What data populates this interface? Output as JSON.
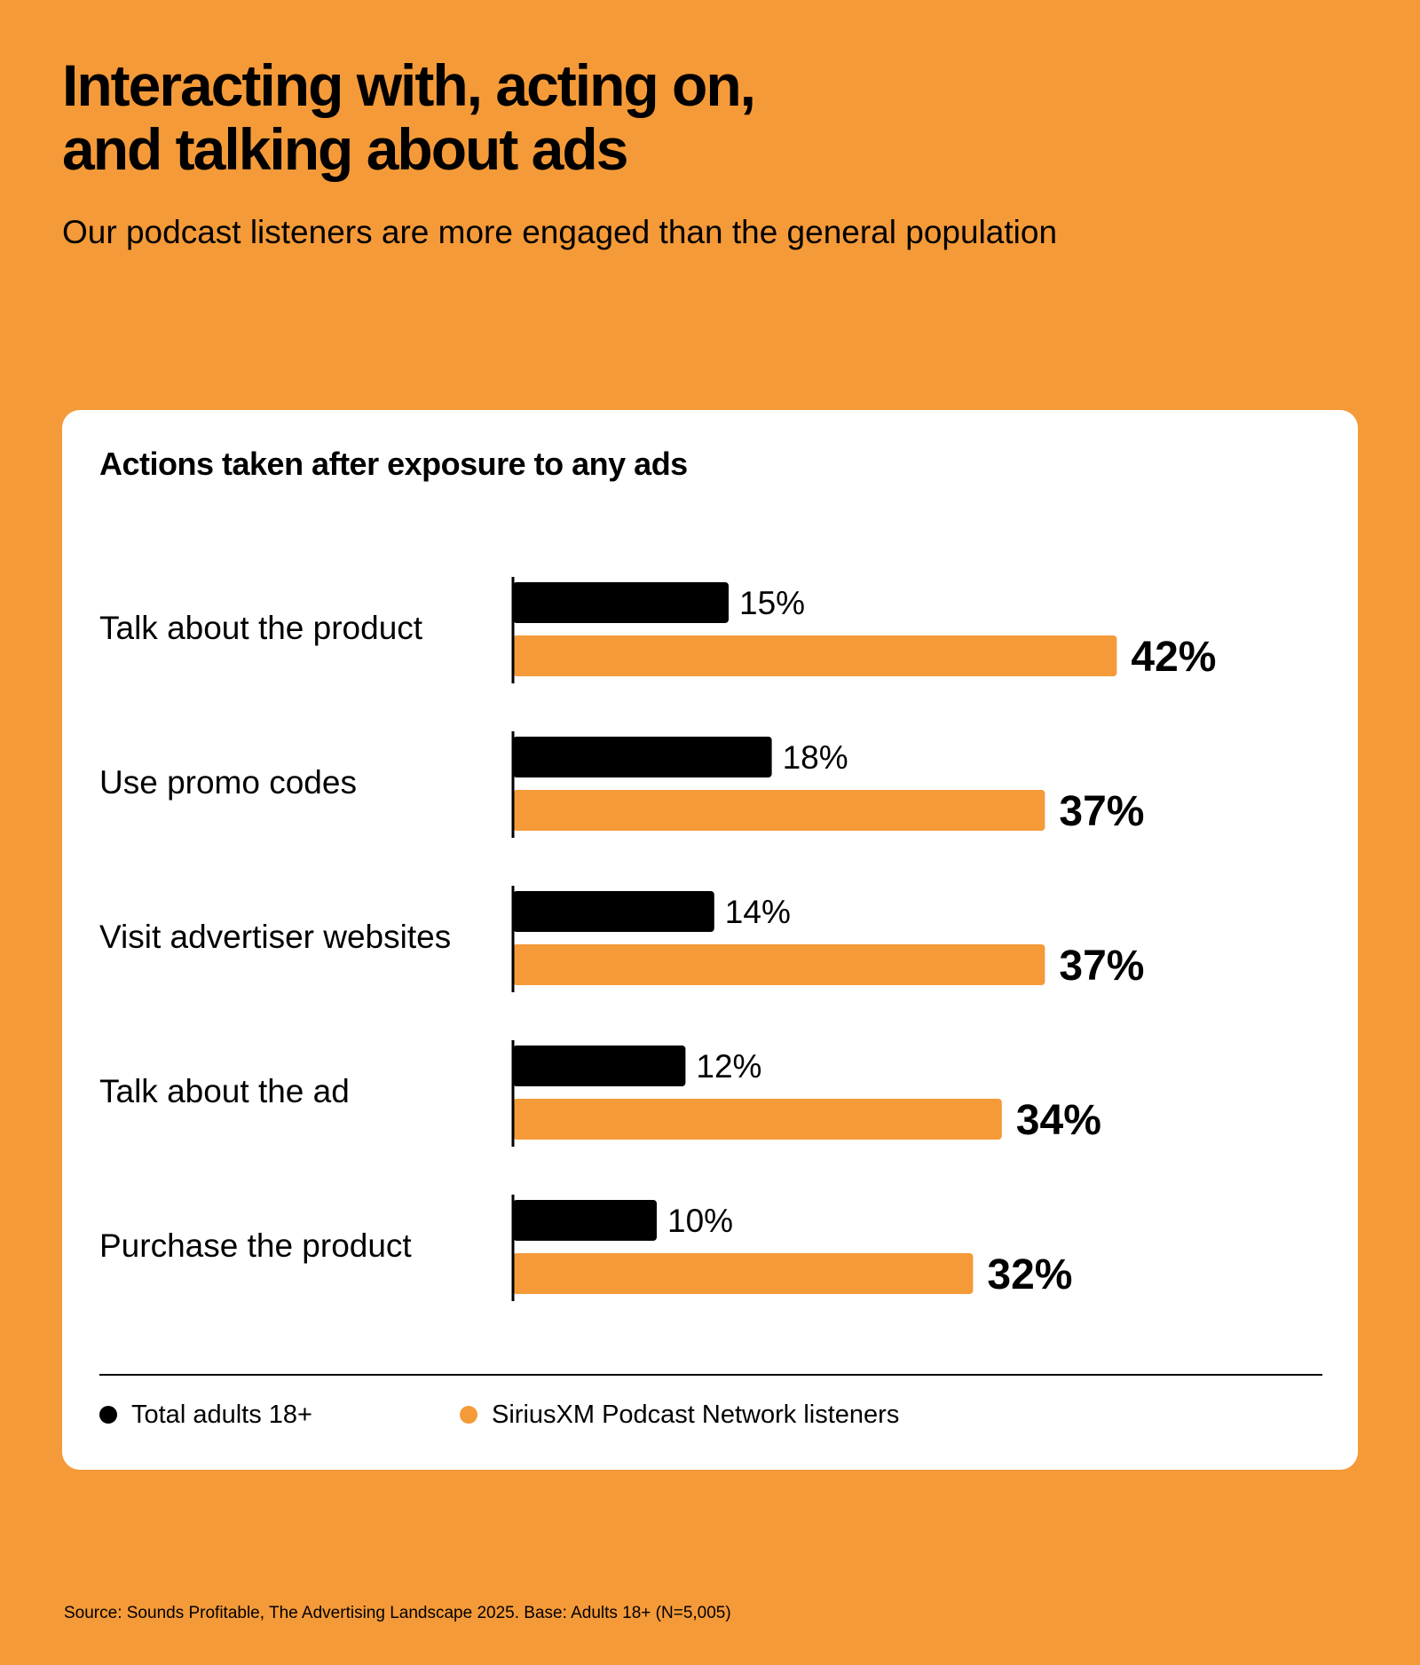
{
  "header": {
    "title_line1": "Interacting with, acting on,",
    "title_line2": "and talking about ads",
    "subtitle": "Our podcast listeners are more engaged than the general population"
  },
  "colors": {
    "background": "#F59A38",
    "series_total": "#000000",
    "series_podcast": "#F59A38",
    "card": "#FFFFFF"
  },
  "chart_data": {
    "type": "bar",
    "orientation": "horizontal",
    "title": "Actions taken after exposure to any ads",
    "categories": [
      "Talk about the product",
      "Use promo codes",
      "Visit advertiser websites",
      "Talk about the ad",
      "Purchase the product"
    ],
    "series": [
      {
        "name": "Total adults 18+",
        "values": [
          15,
          18,
          14,
          12,
          10
        ],
        "labels": [
          "15%",
          "18%",
          "14%",
          "12%",
          "10%"
        ]
      },
      {
        "name": "SiriusXM Podcast Network listeners",
        "values": [
          42,
          37,
          37,
          34,
          32
        ],
        "labels": [
          "42%",
          "37%",
          "37%",
          "34%",
          "32%"
        ]
      }
    ],
    "unit": "%",
    "grid": false,
    "legend_position": "bottom-left"
  },
  "footer": {
    "source": "Source: Sounds Profitable, The Advertising Landscape 2025. Base: Adults 18+ (N=5,005)"
  }
}
